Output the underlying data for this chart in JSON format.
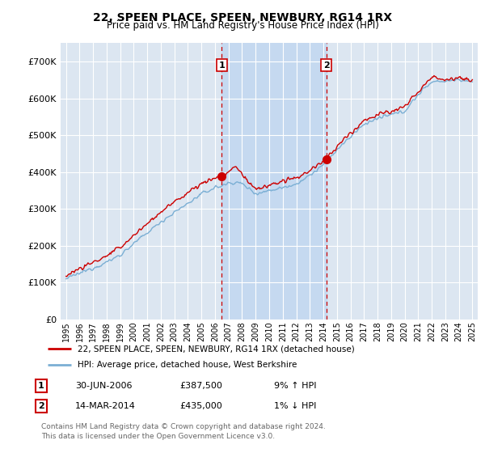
{
  "title": "22, SPEEN PLACE, SPEEN, NEWBURY, RG14 1RX",
  "subtitle": "Price paid vs. HM Land Registry's House Price Index (HPI)",
  "ylim": [
    0,
    750000
  ],
  "yticks": [
    0,
    100000,
    200000,
    300000,
    400000,
    500000,
    600000,
    700000
  ],
  "ytick_labels": [
    "£0",
    "£100K",
    "£200K",
    "£300K",
    "£400K",
    "£500K",
    "£600K",
    "£700K"
  ],
  "background_color": "#ffffff",
  "plot_bg_color": "#dce6f1",
  "grid_color": "#ffffff",
  "marker1_date": 2006.5,
  "marker1_value": 387500,
  "marker2_date": 2014.21,
  "marker2_value": 435000,
  "legend_line1": "22, SPEEN PLACE, SPEEN, NEWBURY, RG14 1RX (detached house)",
  "legend_line2": "HPI: Average price, detached house, West Berkshire",
  "table_row1": [
    "1",
    "30-JUN-2006",
    "£387,500",
    "9% ↑ HPI"
  ],
  "table_row2": [
    "2",
    "14-MAR-2014",
    "£435,000",
    "1% ↓ HPI"
  ],
  "footer": "Contains HM Land Registry data © Crown copyright and database right 2024.\nThis data is licensed under the Open Government Licence v3.0.",
  "hpi_color": "#7bafd4",
  "price_color": "#cc0000",
  "shade_color": "#c5d9f0",
  "vline_color": "#cc0000",
  "xlim_left": 1994.6,
  "xlim_right": 2025.4
}
